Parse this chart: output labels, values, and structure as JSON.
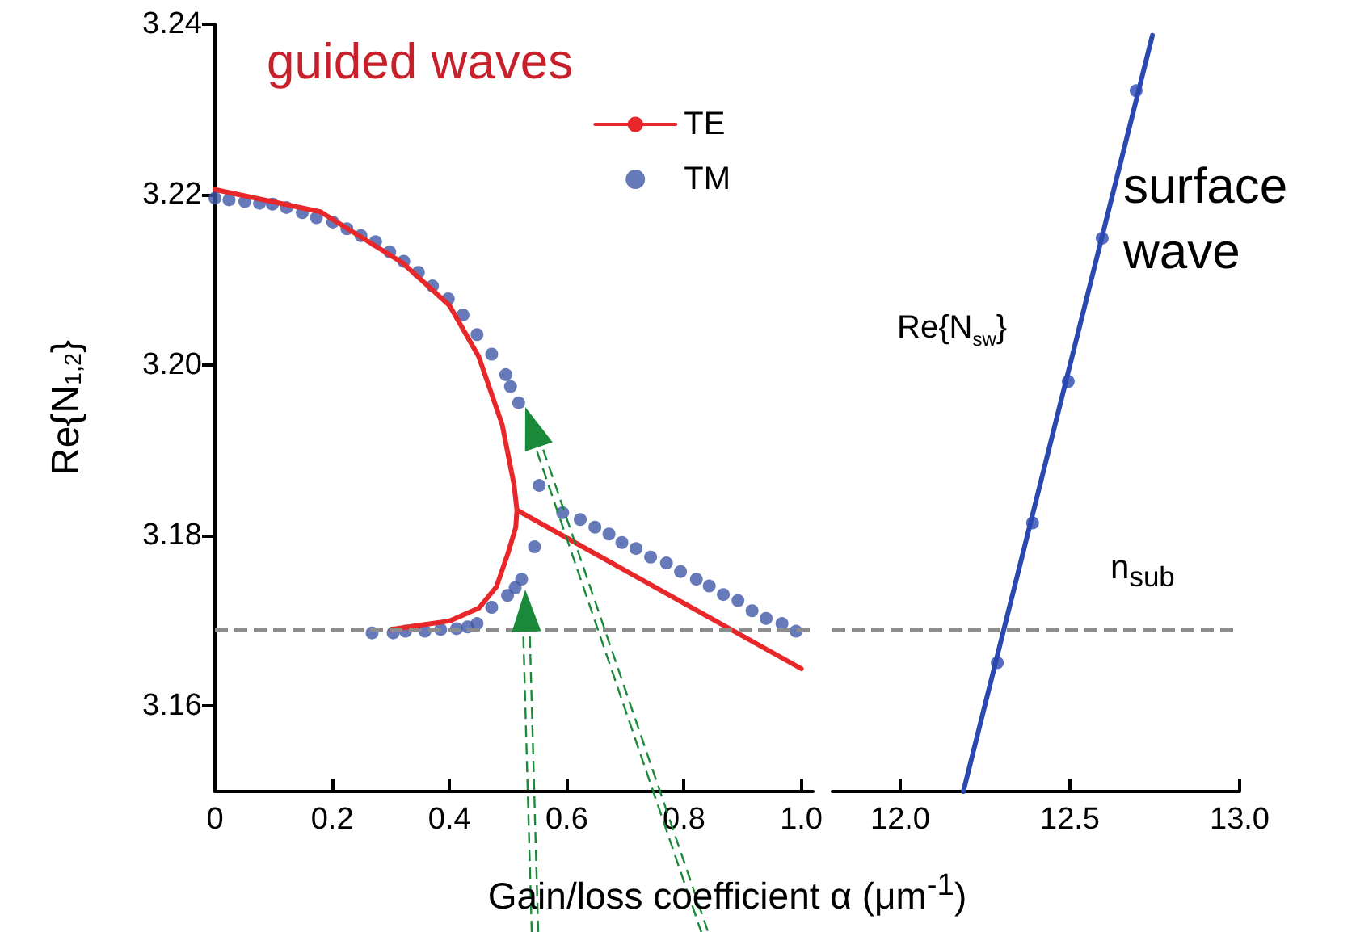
{
  "chart_data": [
    {
      "type": "line",
      "ylabel": "Re{N$_{1,2}$}",
      "xlabel": "Gain/loss coefficient α (μm$^{-1}$)",
      "annotations": [
        "guided waves"
      ],
      "xlim": [
        0,
        1.02
      ],
      "xticks": [
        0,
        0.2,
        0.4,
        0.6,
        0.8,
        {
          "value": 1,
          "label": "1.0"
        }
      ],
      "ylim": [
        3.15,
        3.24
      ],
      "yticks": [
        3.16,
        3.18,
        {
          "value": 3.2,
          "label": "3.20"
        },
        3.22,
        3.24
      ],
      "legend": "top right",
      "ref_lines": [
        {
          "axis": "y",
          "value": 3.169,
          "color": "#8c8c8c",
          "line_style": "dashed"
        }
      ],
      "series": [
        {
          "name": "TE",
          "type": "line",
          "color": "#e8272a",
          "x": [
            0,
            0.18,
            0.32,
            0.4,
            0.45,
            0.49,
            0.51,
            0.515,
            1.0,
            0.515,
            0.3,
            0.4,
            0.45,
            0.48,
            0.5,
            0.513,
            0.515
          ],
          "values": [
            3.2206,
            3.218,
            3.212,
            3.207,
            3.201,
            3.193,
            3.186,
            3.183,
            3.1644,
            null,
            3.169,
            3.17,
            3.1715,
            3.174,
            3.178,
            3.181,
            3.183
          ]
        },
        {
          "name": "TM",
          "type": "scatter",
          "marker": "circle",
          "color": "#4058a8",
          "x": [
            0,
            0.024,
            0.051,
            0.076,
            0.098,
            0.122,
            0.149,
            0.173,
            0.201,
            0.225,
            0.249,
            0.274,
            0.298,
            0.322,
            0.347,
            0.371,
            0.398,
            0.423,
            0.447,
            0.472,
            0.496,
            0.504,
            0.518,
            0.553,
            0.545,
            0.593,
            0.623,
            0.648,
            0.672,
            0.694,
            0.718,
            0.743,
            0.77,
            0.794,
            0.821,
            0.843,
            0.867,
            0.892,
            0.916,
            0.94,
            0.967,
            0.991,
            0.268,
            0.304,
            0.325,
            0.358,
            0.385,
            0.412,
            0.431,
            0.447,
            0.472,
            0.499,
            0.512,
            0.523
          ],
          "values": [
            3.2196,
            3.2194,
            3.2192,
            3.219,
            3.2189,
            3.2185,
            3.2179,
            3.2173,
            3.2168,
            3.216,
            3.2152,
            3.2145,
            3.2133,
            3.2122,
            3.2109,
            3.2093,
            3.2078,
            3.2059,
            3.2036,
            3.2013,
            3.1989,
            3.1975,
            3.1956,
            3.1859,
            3.1787,
            3.1827,
            3.1819,
            3.181,
            3.1802,
            3.1792,
            3.1785,
            3.1775,
            3.1768,
            3.1758,
            3.1749,
            3.1741,
            3.1731,
            3.1724,
            3.1712,
            3.1703,
            3.1697,
            3.1688,
            3.1686,
            3.1686,
            3.1688,
            3.1688,
            3.169,
            3.1691,
            3.1693,
            3.1697,
            3.1716,
            3.173,
            3.1739,
            3.1749
          ]
        }
      ]
    },
    {
      "type": "line",
      "annotations": [
        "surface wave",
        "Re{N$_{sw}$}"
      ],
      "xlim": [
        11.8,
        13.0
      ],
      "xticks": [
        {
          "value": 12,
          "label": "12.0"
        },
        12.5,
        {
          "value": 13,
          "label": "13.0"
        }
      ],
      "ylim": [
        3.15,
        3.24
      ],
      "tick_labels": "x",
      "ref_lines": [
        {
          "axis": "y",
          "value": 3.169,
          "label": "n$_{sub}$",
          "color": "#8c8c8c",
          "line_style": "dashed"
        }
      ],
      "series": [
        {
          "type": "line",
          "color": "#2b48b0",
          "x": [
            12.186,
            12.743
          ],
          "values": [
            3.15,
            3.2387
          ]
        },
        {
          "type": "scatter",
          "marker": "circle",
          "color": "#2b48b0",
          "x": [
            12.286,
            12.39,
            12.495,
            12.595,
            12.695
          ],
          "values": [
            3.1651,
            3.1815,
            3.1981,
            3.2149,
            3.2322
          ]
        }
      ]
    }
  ]
}
